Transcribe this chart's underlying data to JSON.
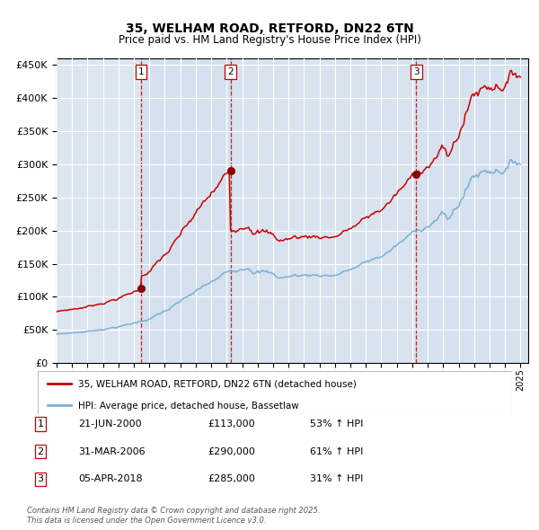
{
  "title": "35, WELHAM ROAD, RETFORD, DN22 6TN",
  "subtitle": "Price paid vs. HM Land Registry's House Price Index (HPI)",
  "legend_line1": "35, WELHAM ROAD, RETFORD, DN22 6TN (detached house)",
  "legend_line2": "HPI: Average price, detached house, Bassetlaw",
  "footer_line1": "Contains HM Land Registry data © Crown copyright and database right 2025.",
  "footer_line2": "This data is licensed under the Open Government Licence v3.0.",
  "sales": [
    {
      "num": 1,
      "date_str": "21-JUN-2000",
      "price": 113000,
      "pct": "53% ↑ HPI",
      "date_decimal": 2000.47
    },
    {
      "num": 2,
      "date_str": "31-MAR-2006",
      "price": 290000,
      "pct": "61% ↑ HPI",
      "date_decimal": 2006.25
    },
    {
      "num": 3,
      "date_str": "05-APR-2018",
      "price": 285000,
      "pct": "31% ↑ HPI",
      "date_decimal": 2018.26
    }
  ],
  "red_line_color": "#cc0000",
  "blue_line_color": "#7bafd4",
  "sale_dot_color": "#880000",
  "dashed_line_color": "#cc0000",
  "background_color": "#ffffff",
  "plot_bg_color": "#dce6f1",
  "grid_color": "#ffffff",
  "title_color": "#000000",
  "ylim": [
    0,
    460000
  ],
  "xlim_start": 1995.0,
  "xlim_end": 2025.5
}
